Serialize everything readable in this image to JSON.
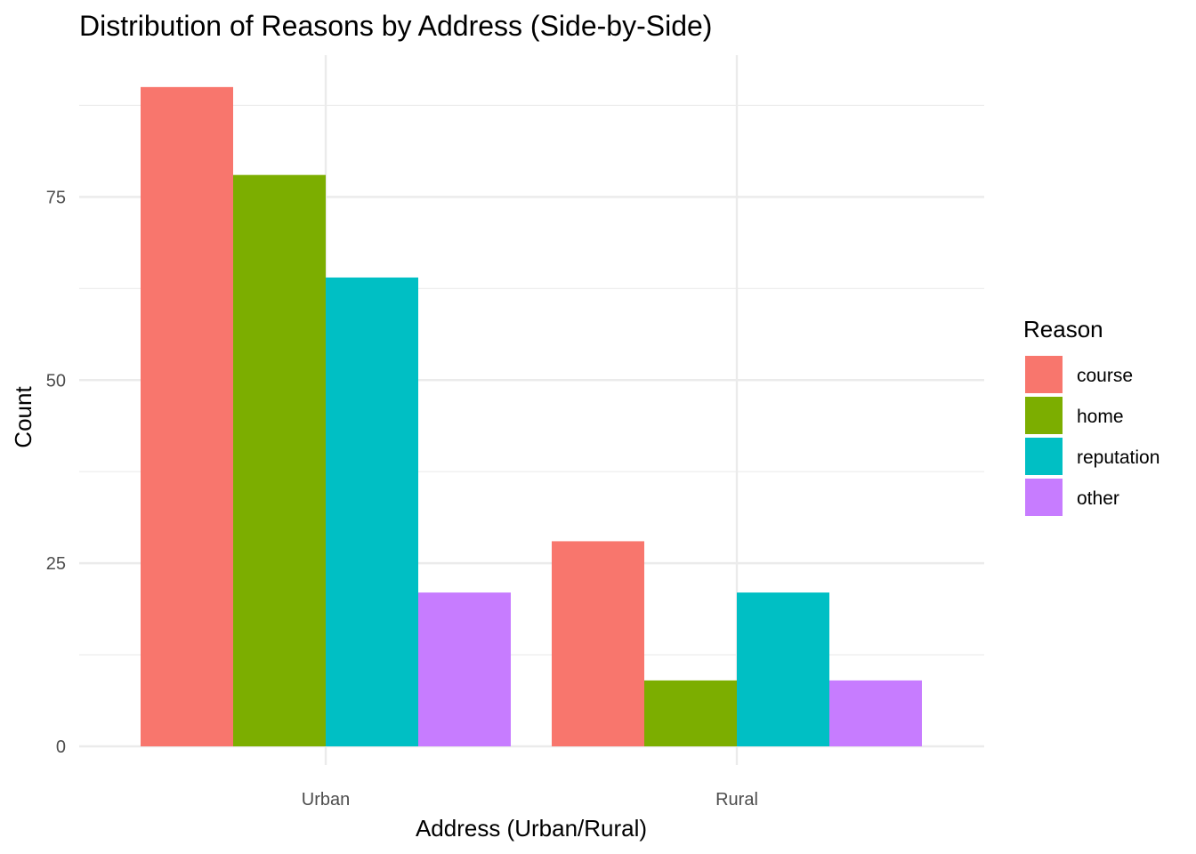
{
  "chart_data": {
    "type": "bar",
    "title": "Distribution of Reasons by Address (Side-by-Side)",
    "xlabel": "Address (Urban/Rural)",
    "ylabel": "Count",
    "categories": [
      "Urban",
      "Rural"
    ],
    "series": [
      {
        "name": "course",
        "color": "#F8766D",
        "values": [
          90,
          28
        ]
      },
      {
        "name": "home",
        "color": "#7CAE00",
        "values": [
          78,
          9
        ]
      },
      {
        "name": "reputation",
        "color": "#00BFC4",
        "values": [
          64,
          21
        ]
      },
      {
        "name": "other",
        "color": "#C77CFF",
        "values": [
          21,
          9
        ]
      }
    ],
    "y_ticks": [
      0,
      25,
      50,
      75
    ],
    "y_minor_ticks": [
      12.5,
      37.5,
      62.5,
      87.5
    ],
    "ylim": [
      0,
      94.5
    ],
    "grid": true,
    "legend": {
      "title": "Reason",
      "position": "right"
    }
  }
}
